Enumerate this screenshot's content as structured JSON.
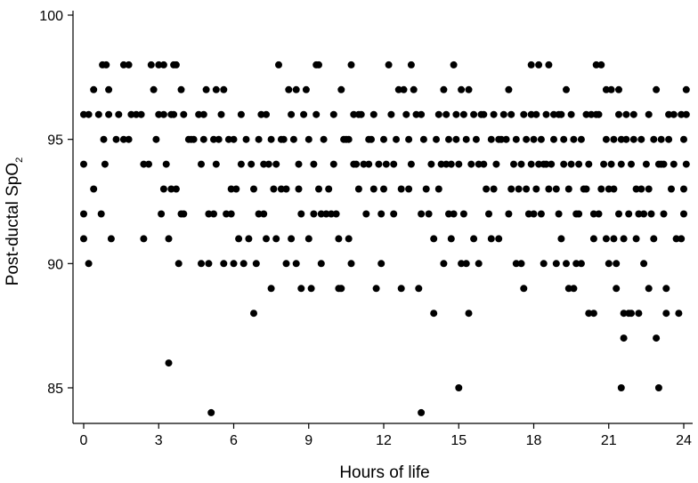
{
  "chart_data": {
    "type": "scatter",
    "title": "",
    "xlabel": "Hours of life",
    "ylabel_main": "Post-ductal SpO",
    "ylabel_sub": "2",
    "xlim": [
      -0.3,
      24.3
    ],
    "ylim": [
      83.5,
      100.5
    ],
    "xticks": [
      0,
      3,
      6,
      9,
      12,
      15,
      18,
      21,
      24
    ],
    "yticks": [
      85,
      90,
      95,
      100
    ],
    "grid": false,
    "legend": "none",
    "marker_color": "#000000",
    "points": [
      [
        0,
        96
      ],
      [
        0,
        94
      ],
      [
        0,
        92
      ],
      [
        0,
        91
      ],
      [
        0.2,
        96
      ],
      [
        0.2,
        90
      ],
      [
        0.4,
        97
      ],
      [
        0.4,
        93
      ],
      [
        0.6,
        96
      ],
      [
        0.7,
        92
      ],
      [
        0.75,
        98
      ],
      [
        0.8,
        95
      ],
      [
        0.85,
        94
      ],
      [
        0.9,
        98
      ],
      [
        1.0,
        97
      ],
      [
        1.0,
        96
      ],
      [
        1.1,
        91
      ],
      [
        1.3,
        95
      ],
      [
        1.4,
        96
      ],
      [
        1.6,
        98
      ],
      [
        1.6,
        95
      ],
      [
        1.8,
        98
      ],
      [
        1.8,
        95
      ],
      [
        1.9,
        96
      ],
      [
        2.1,
        96
      ],
      [
        2.3,
        96
      ],
      [
        2.4,
        94
      ],
      [
        2.4,
        91
      ],
      [
        2.6,
        94
      ],
      [
        2.7,
        98
      ],
      [
        2.8,
        97
      ],
      [
        2.9,
        95
      ],
      [
        3.0,
        98
      ],
      [
        3.0,
        96
      ],
      [
        3.1,
        92
      ],
      [
        3.2,
        98
      ],
      [
        3.2,
        96
      ],
      [
        3.2,
        93
      ],
      [
        3.3,
        94
      ],
      [
        3.4,
        91
      ],
      [
        3.4,
        86
      ],
      [
        3.5,
        96
      ],
      [
        3.5,
        93
      ],
      [
        3.6,
        98
      ],
      [
        3.6,
        96
      ],
      [
        3.7,
        93
      ],
      [
        3.7,
        98
      ],
      [
        3.8,
        90
      ],
      [
        3.9,
        97
      ],
      [
        3.9,
        92
      ],
      [
        4.0,
        92
      ],
      [
        4.0,
        96
      ],
      [
        4.2,
        95
      ],
      [
        4.3,
        95
      ],
      [
        4.4,
        95
      ],
      [
        4.6,
        96
      ],
      [
        4.7,
        94
      ],
      [
        4.7,
        90
      ],
      [
        4.8,
        96
      ],
      [
        4.8,
        95
      ],
      [
        4.9,
        97
      ],
      [
        5.0,
        92
      ],
      [
        5.0,
        90
      ],
      [
        5.1,
        84
      ],
      [
        5.2,
        95
      ],
      [
        5.2,
        92
      ],
      [
        5.3,
        94
      ],
      [
        5.3,
        97
      ],
      [
        5.4,
        95
      ],
      [
        5.5,
        96
      ],
      [
        5.6,
        97
      ],
      [
        5.6,
        90
      ],
      [
        5.7,
        92
      ],
      [
        5.8,
        95
      ],
      [
        5.9,
        93
      ],
      [
        5.9,
        92
      ],
      [
        6.0,
        90
      ],
      [
        6.0,
        95
      ],
      [
        6.1,
        93
      ],
      [
        6.2,
        91
      ],
      [
        6.3,
        96
      ],
      [
        6.3,
        94
      ],
      [
        6.4,
        90
      ],
      [
        6.5,
        95
      ],
      [
        6.6,
        91
      ],
      [
        6.7,
        94
      ],
      [
        6.8,
        93
      ],
      [
        6.8,
        88
      ],
      [
        6.9,
        90
      ],
      [
        7.0,
        95
      ],
      [
        7.0,
        92
      ],
      [
        7.1,
        96
      ],
      [
        7.2,
        94
      ],
      [
        7.2,
        92
      ],
      [
        7.3,
        96
      ],
      [
        7.3,
        91
      ],
      [
        7.4,
        94
      ],
      [
        7.5,
        89
      ],
      [
        7.5,
        95
      ],
      [
        7.6,
        93
      ],
      [
        7.7,
        91
      ],
      [
        7.7,
        94
      ],
      [
        7.8,
        98
      ],
      [
        7.9,
        95
      ],
      [
        7.9,
        93
      ],
      [
        8.0,
        95
      ],
      [
        8.1,
        90
      ],
      [
        8.1,
        93
      ],
      [
        8.2,
        97
      ],
      [
        8.3,
        96
      ],
      [
        8.3,
        91
      ],
      [
        8.4,
        95
      ],
      [
        8.5,
        97
      ],
      [
        8.5,
        90
      ],
      [
        8.6,
        93
      ],
      [
        8.6,
        94
      ],
      [
        8.7,
        92
      ],
      [
        8.7,
        89
      ],
      [
        8.8,
        96
      ],
      [
        8.9,
        97
      ],
      [
        9.0,
        95
      ],
      [
        9.0,
        91
      ],
      [
        9.1,
        89
      ],
      [
        9.2,
        94
      ],
      [
        9.2,
        92
      ],
      [
        9.3,
        96
      ],
      [
        9.3,
        98
      ],
      [
        9.4,
        98
      ],
      [
        9.4,
        93
      ],
      [
        9.5,
        92
      ],
      [
        9.5,
        90
      ],
      [
        9.6,
        95
      ],
      [
        9.7,
        92
      ],
      [
        9.8,
        93
      ],
      [
        9.9,
        92
      ],
      [
        10.0,
        94
      ],
      [
        10.0,
        96
      ],
      [
        10.1,
        92
      ],
      [
        10.2,
        91
      ],
      [
        10.2,
        89
      ],
      [
        10.3,
        97
      ],
      [
        10.3,
        89
      ],
      [
        10.4,
        95
      ],
      [
        10.5,
        95
      ],
      [
        10.6,
        95
      ],
      [
        10.6,
        91
      ],
      [
        10.7,
        98
      ],
      [
        10.7,
        90
      ],
      [
        10.8,
        94
      ],
      [
        10.8,
        96
      ],
      [
        10.9,
        94
      ],
      [
        11.0,
        96
      ],
      [
        11.0,
        93
      ],
      [
        11.1,
        96
      ],
      [
        11.2,
        94
      ],
      [
        11.3,
        92
      ],
      [
        11.4,
        95
      ],
      [
        11.4,
        94
      ],
      [
        11.5,
        95
      ],
      [
        11.6,
        96
      ],
      [
        11.6,
        93
      ],
      [
        11.7,
        89
      ],
      [
        11.8,
        94
      ],
      [
        11.9,
        92
      ],
      [
        11.9,
        90
      ],
      [
        12.0,
        95
      ],
      [
        12.0,
        93
      ],
      [
        12.1,
        94
      ],
      [
        12.2,
        98
      ],
      [
        12.3,
        96
      ],
      [
        12.4,
        94
      ],
      [
        12.4,
        92
      ],
      [
        12.5,
        95
      ],
      [
        12.6,
        97
      ],
      [
        12.7,
        93
      ],
      [
        12.7,
        89
      ],
      [
        12.8,
        97
      ],
      [
        12.9,
        96
      ],
      [
        13.0,
        95
      ],
      [
        13.0,
        93
      ],
      [
        13.1,
        94
      ],
      [
        13.1,
        98
      ],
      [
        13.2,
        97
      ],
      [
        13.3,
        96
      ],
      [
        13.4,
        89
      ],
      [
        13.5,
        92
      ],
      [
        13.5,
        96
      ],
      [
        13.5,
        84
      ],
      [
        13.6,
        95
      ],
      [
        13.7,
        93
      ],
      [
        13.8,
        92
      ],
      [
        13.9,
        94
      ],
      [
        14.0,
        91
      ],
      [
        14.0,
        88
      ],
      [
        14.1,
        95
      ],
      [
        14.2,
        96
      ],
      [
        14.2,
        93
      ],
      [
        14.3,
        94
      ],
      [
        14.4,
        97
      ],
      [
        14.4,
        90
      ],
      [
        14.5,
        96
      ],
      [
        14.5,
        94
      ],
      [
        14.6,
        95
      ],
      [
        14.6,
        92
      ],
      [
        14.7,
        91
      ],
      [
        14.7,
        94
      ],
      [
        14.8,
        98
      ],
      [
        14.8,
        92
      ],
      [
        14.9,
        95
      ],
      [
        14.9,
        96
      ],
      [
        15.0,
        85
      ],
      [
        15.0,
        94
      ],
      [
        15.1,
        97
      ],
      [
        15.1,
        90
      ],
      [
        15.2,
        96
      ],
      [
        15.2,
        92
      ],
      [
        15.3,
        95
      ],
      [
        15.3,
        90
      ],
      [
        15.4,
        88
      ],
      [
        15.4,
        97
      ],
      [
        15.5,
        94
      ],
      [
        15.6,
        96
      ],
      [
        15.6,
        91
      ],
      [
        15.7,
        95
      ],
      [
        15.8,
        94
      ],
      [
        15.8,
        90
      ],
      [
        15.9,
        96
      ],
      [
        16.0,
        94
      ],
      [
        16.0,
        96
      ],
      [
        16.1,
        93
      ],
      [
        16.2,
        92
      ],
      [
        16.3,
        95
      ],
      [
        16.3,
        91
      ],
      [
        16.4,
        96
      ],
      [
        16.4,
        93
      ],
      [
        16.5,
        94
      ],
      [
        16.6,
        95
      ],
      [
        16.6,
        91
      ],
      [
        16.7,
        95
      ],
      [
        16.8,
        96
      ],
      [
        16.9,
        95
      ],
      [
        17.0,
        97
      ],
      [
        17.0,
        92
      ],
      [
        17.1,
        96
      ],
      [
        17.1,
        93
      ],
      [
        17.2,
        94
      ],
      [
        17.3,
        95
      ],
      [
        17.3,
        90
      ],
      [
        17.4,
        93
      ],
      [
        17.5,
        94
      ],
      [
        17.5,
        90
      ],
      [
        17.6,
        89
      ],
      [
        17.6,
        96
      ],
      [
        17.7,
        93
      ],
      [
        17.7,
        95
      ],
      [
        17.8,
        92
      ],
      [
        17.9,
        96
      ],
      [
        17.9,
        98
      ],
      [
        18.0,
        95
      ],
      [
        18.0,
        92
      ],
      [
        18.1,
        93
      ],
      [
        18.1,
        96
      ],
      [
        18.2,
        98
      ],
      [
        18.3,
        92
      ],
      [
        18.3,
        95
      ],
      [
        18.4,
        90
      ],
      [
        18.5,
        94
      ],
      [
        18.5,
        96
      ],
      [
        18.6,
        93
      ],
      [
        18.6,
        98
      ],
      [
        18.7,
        94
      ],
      [
        18.8,
        95
      ],
      [
        18.9,
        93
      ],
      [
        19.0,
        96
      ],
      [
        19.0,
        92
      ],
      [
        19.1,
        91
      ],
      [
        19.2,
        94
      ],
      [
        19.2,
        95
      ],
      [
        19.3,
        90
      ],
      [
        19.4,
        89
      ],
      [
        19.4,
        93
      ],
      [
        19.5,
        94
      ],
      [
        19.6,
        95
      ],
      [
        19.6,
        89
      ],
      [
        19.7,
        92
      ],
      [
        19.8,
        94
      ],
      [
        19.8,
        92
      ],
      [
        19.9,
        90
      ],
      [
        20.0,
        93
      ],
      [
        20.1,
        96
      ],
      [
        20.1,
        93
      ],
      [
        20.2,
        94
      ],
      [
        20.3,
        96
      ],
      [
        20.4,
        92
      ],
      [
        20.4,
        91
      ],
      [
        20.5,
        98
      ],
      [
        20.5,
        96
      ],
      [
        20.6,
        96
      ],
      [
        20.7,
        98
      ],
      [
        20.7,
        93
      ],
      [
        20.8,
        94
      ],
      [
        20.9,
        97
      ],
      [
        20.9,
        91
      ],
      [
        21.0,
        93
      ],
      [
        21.0,
        90
      ],
      [
        21.1,
        97
      ],
      [
        21.1,
        94
      ],
      [
        21.2,
        95
      ],
      [
        21.2,
        93
      ],
      [
        21.3,
        90
      ],
      [
        21.4,
        96
      ],
      [
        21.4,
        92
      ],
      [
        21.5,
        94
      ],
      [
        21.5,
        95
      ],
      [
        21.6,
        91
      ],
      [
        21.6,
        88
      ],
      [
        21.7,
        96
      ],
      [
        21.7,
        95
      ],
      [
        21.8,
        92
      ],
      [
        21.9,
        94
      ],
      [
        21.9,
        88
      ],
      [
        22.0,
        95
      ],
      [
        22.1,
        93
      ],
      [
        22.1,
        91
      ],
      [
        22.2,
        92
      ],
      [
        22.3,
        95
      ],
      [
        22.4,
        90
      ],
      [
        22.4,
        92
      ],
      [
        22.5,
        94
      ],
      [
        22.6,
        93
      ],
      [
        22.6,
        89
      ],
      [
        22.7,
        92
      ],
      [
        22.8,
        95
      ],
      [
        22.9,
        97
      ],
      [
        22.9,
        87
      ],
      [
        23.0,
        85
      ],
      [
        23.0,
        94
      ],
      [
        23.1,
        94
      ],
      [
        23.2,
        92
      ],
      [
        23.2,
        94
      ],
      [
        23.3,
        89
      ],
      [
        23.3,
        88
      ],
      [
        23.4,
        95
      ],
      [
        23.5,
        93
      ],
      [
        23.6,
        96
      ],
      [
        23.7,
        91
      ],
      [
        23.8,
        88
      ],
      [
        23.9,
        96
      ],
      [
        24.0,
        95
      ],
      [
        24.0,
        93
      ],
      [
        24.0,
        92
      ],
      [
        24.1,
        97
      ],
      [
        24.1,
        94
      ],
      [
        24.1,
        96
      ],
      [
        23.9,
        91
      ],
      [
        23.6,
        94
      ],
      [
        23.4,
        96
      ],
      [
        23.1,
        95
      ],
      [
        22.8,
        91
      ],
      [
        22.6,
        96
      ],
      [
        22.3,
        93
      ],
      [
        22.2,
        88
      ],
      [
        22.0,
        96
      ],
      [
        21.8,
        88
      ],
      [
        21.6,
        87
      ],
      [
        21.5,
        85
      ],
      [
        21.4,
        97
      ],
      [
        21.3,
        89
      ],
      [
        21.2,
        91
      ],
      [
        20.9,
        95
      ],
      [
        20.6,
        92
      ],
      [
        20.4,
        88
      ],
      [
        20.2,
        88
      ],
      [
        19.9,
        95
      ],
      [
        19.7,
        90
      ],
      [
        19.5,
        96
      ],
      [
        19.3,
        97
      ],
      [
        19.1,
        96
      ],
      [
        18.9,
        90
      ],
      [
        18.8,
        96
      ],
      [
        18.4,
        94
      ],
      [
        18.2,
        94
      ],
      [
        17.9,
        94
      ]
    ]
  }
}
